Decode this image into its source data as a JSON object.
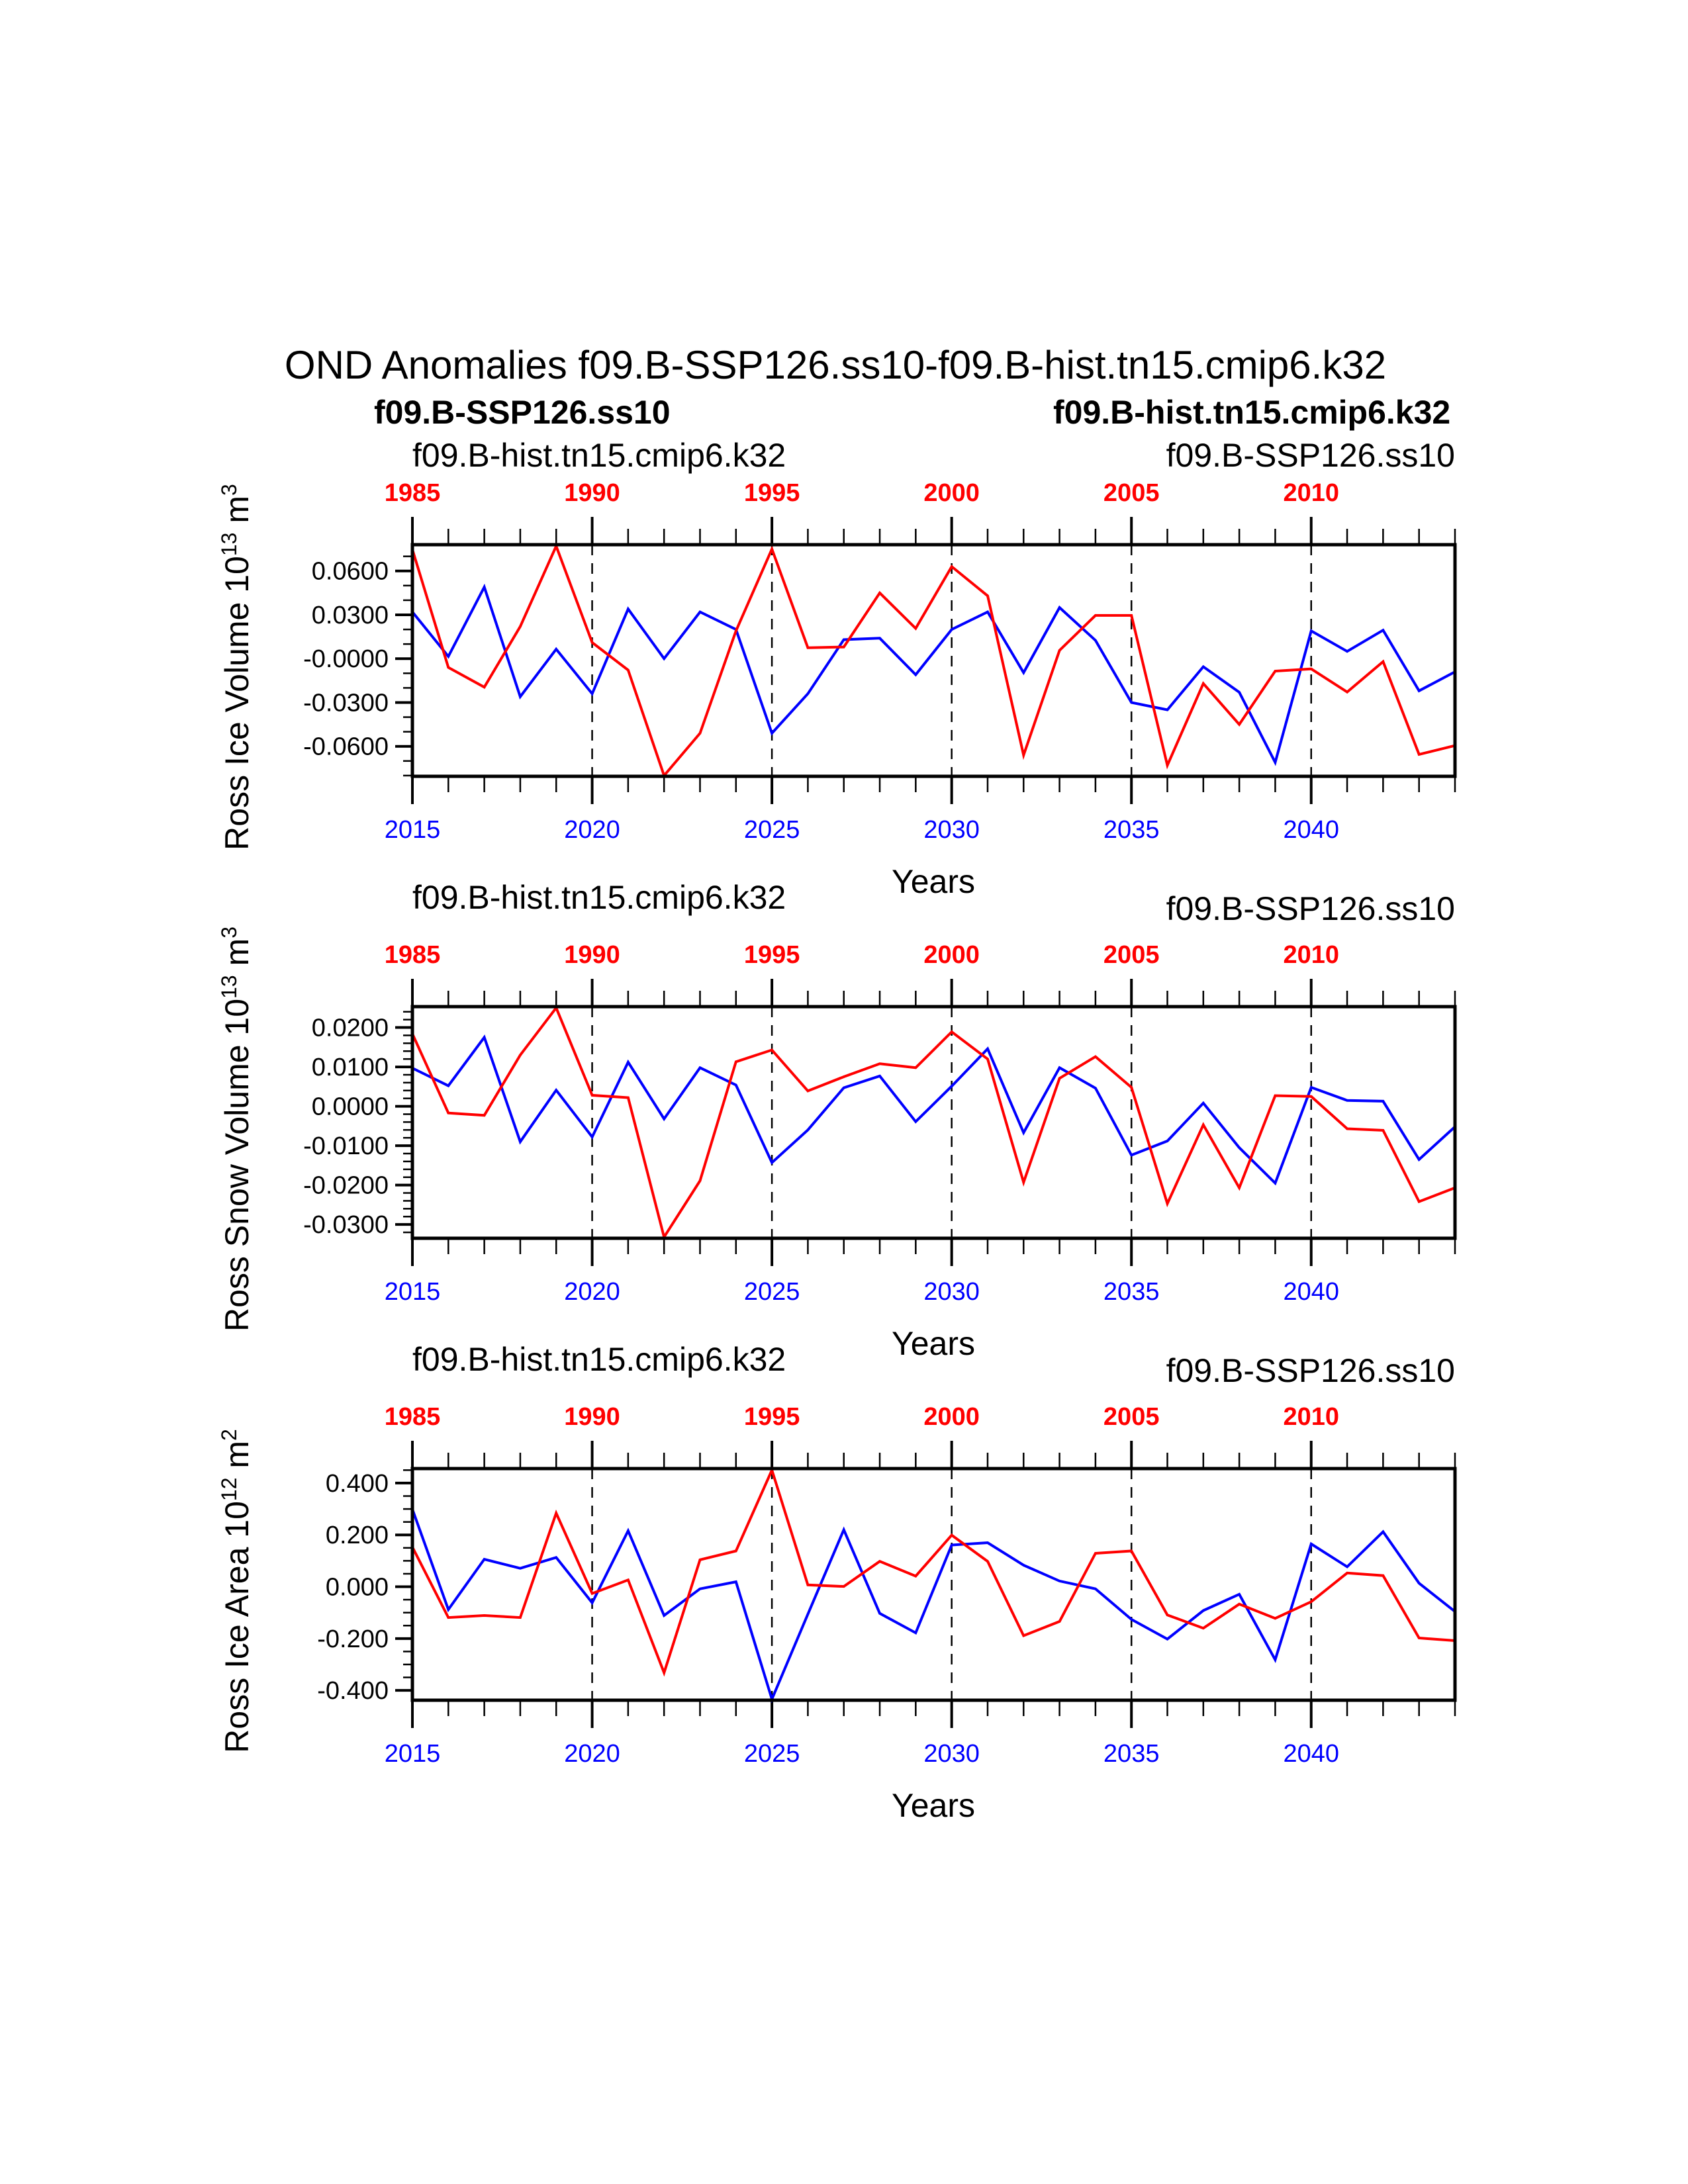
{
  "title": "OND Anomalies f09.B-SSP126.ss10-f09.B-hist.tn15.cmip6.k32",
  "colors": {
    "ssp": "#0000ff",
    "hist": "#ff0000",
    "axis": "#000000"
  },
  "extra_labels_panel1": {
    "ssp_bold": "f09.B-SSP126.ss10",
    "hist_bold": "f09.B-hist.tn15.cmip6.k32"
  },
  "chart_data": [
    {
      "type": "line",
      "ylabel": "Ross Ice Volume 10",
      "ylabel_exp": "13",
      "ylabel_unit": " m",
      "ylabel_unit_exp": "3",
      "xlabel": "Years",
      "hist_label": "f09.B-hist.tn15.cmip6.k32",
      "ssp_label": "f09.B-SSP126.ss10",
      "ylim": [
        -0.0805,
        0.078
      ],
      "yticks": [
        0.06,
        0.03,
        0.0,
        -0.03,
        -0.06
      ],
      "ytick_labels": [
        "0.0600",
        "0.0300",
        "-0.0000",
        "-0.0300",
        "-0.0600"
      ],
      "yminor_step": 0.01,
      "xlim": [
        2015,
        2044
      ],
      "bottom_ticks": [
        "2015",
        "2020",
        "2025",
        "2030",
        "2035",
        "2040"
      ],
      "top_ticks": [
        "1985",
        "1990",
        "1995",
        "2000",
        "2005",
        "2010"
      ],
      "grid": "dashed vertical lines at 2020, 2025, 2030, 2035, 2040",
      "x": [
        2015,
        2016,
        2017,
        2018,
        2019,
        2020,
        2021,
        2022,
        2023,
        2024,
        2025,
        2026,
        2027,
        2028,
        2029,
        2030,
        2031,
        2032,
        2033,
        2034,
        2035,
        2036,
        2037,
        2038,
        2039,
        2040,
        2041,
        2042,
        2043,
        2044
      ],
      "series": [
        {
          "name": "f09.B-SSP126.ss10",
          "color": "#0000ff",
          "values": [
            0.032,
            0.0015,
            0.049,
            -0.026,
            0.0065,
            -0.024,
            0.034,
            0.0,
            0.032,
            0.02,
            -0.051,
            -0.024,
            0.013,
            0.014,
            -0.011,
            0.02,
            0.032,
            -0.0096,
            0.035,
            0.0125,
            -0.03,
            -0.035,
            -0.0055,
            -0.023,
            -0.071,
            0.019,
            0.005,
            0.0195,
            -0.022,
            -0.009
          ]
        },
        {
          "name": "f09.B-hist.tn15.cmip6.k32",
          "color": "#ff0000",
          "values": [
            0.0747,
            -0.006,
            -0.0195,
            0.022,
            0.077,
            0.011,
            -0.0078,
            -0.08,
            -0.051,
            0.019,
            0.075,
            0.0075,
            0.008,
            0.045,
            0.0207,
            0.063,
            0.043,
            -0.066,
            0.0057,
            0.0296,
            0.0296,
            -0.073,
            -0.017,
            -0.045,
            -0.0085,
            -0.007,
            -0.0228,
            -0.002,
            -0.0655,
            -0.0595
          ]
        }
      ]
    },
    {
      "type": "line",
      "ylabel": "Ross Snow Volume 10",
      "ylabel_exp": "13",
      "ylabel_unit": " m",
      "ylabel_unit_exp": "3",
      "xlabel": "Years",
      "hist_label": "f09.B-hist.tn15.cmip6.k32",
      "ssp_label": "f09.B-SSP126.ss10",
      "ylim": [
        -0.0335,
        0.0253
      ],
      "yticks": [
        0.02,
        0.01,
        0.0,
        -0.01,
        -0.02,
        -0.03
      ],
      "ytick_labels": [
        "0.0200",
        "0.0100",
        "0.0000",
        "-0.0100",
        "-0.0200",
        "-0.0300"
      ],
      "yminor_step": 0.002,
      "xlim": [
        2015,
        2044
      ],
      "bottom_ticks": [
        "2015",
        "2020",
        "2025",
        "2030",
        "2035",
        "2040"
      ],
      "top_ticks": [
        "1985",
        "1990",
        "1995",
        "2000",
        "2005",
        "2010"
      ],
      "grid": "dashed vertical lines at 2020, 2025, 2030, 2035, 2040",
      "x": [
        2015,
        2016,
        2017,
        2018,
        2019,
        2020,
        2021,
        2022,
        2023,
        2024,
        2025,
        2026,
        2027,
        2028,
        2029,
        2030,
        2031,
        2032,
        2033,
        2034,
        2035,
        2036,
        2037,
        2038,
        2039,
        2040,
        2041,
        2042,
        2043,
        2044
      ],
      "series": [
        {
          "name": "f09.B-SSP126.ss10",
          "color": "#0000ff",
          "values": [
            0.0097,
            0.0052,
            0.0175,
            -0.009,
            0.0041,
            -0.0078,
            0.0112,
            -0.0032,
            0.0098,
            0.0054,
            -0.0143,
            -0.006,
            0.0047,
            0.0077,
            -0.0039,
            0.0051,
            0.0146,
            -0.0067,
            0.0098,
            0.0046,
            -0.0124,
            -0.0088,
            0.0008,
            -0.0105,
            -0.0195,
            0.0048,
            0.0015,
            0.0013,
            -0.0135,
            -0.0052
          ]
        },
        {
          "name": "f09.B-hist.tn15.cmip6.k32",
          "color": "#ff0000",
          "values": [
            0.0184,
            -0.0017,
            -0.0023,
            0.013,
            0.025,
            0.0028,
            0.0022,
            -0.0332,
            -0.0189,
            0.0113,
            0.0143,
            0.0039,
            0.0075,
            0.0108,
            0.0098,
            0.0189,
            0.012,
            -0.0193,
            0.0071,
            0.0126,
            0.0048,
            -0.0247,
            -0.0047,
            -0.0207,
            0.0027,
            0.0025,
            -0.0057,
            -0.0061,
            -0.0242,
            -0.0207
          ]
        }
      ]
    },
    {
      "type": "line",
      "ylabel": "Ross Ice Area 10",
      "ylabel_exp": "12",
      "ylabel_unit": " m",
      "ylabel_unit_exp": "2",
      "xlabel": "Years",
      "hist_label": "f09.B-hist.tn15.cmip6.k32",
      "ssp_label": "f09.B-SSP126.ss10",
      "ylim": [
        -0.438,
        0.456
      ],
      "yticks": [
        0.4,
        0.2,
        0.0,
        -0.2,
        -0.4
      ],
      "ytick_labels": [
        "0.400",
        "0.200",
        "0.000",
        "-0.200",
        "-0.400"
      ],
      "yminor_step": 0.05,
      "xlim": [
        2015,
        2044
      ],
      "bottom_ticks": [
        "2015",
        "2020",
        "2025",
        "2030",
        "2035",
        "2040"
      ],
      "top_ticks": [
        "1985",
        "1990",
        "1995",
        "2000",
        "2005",
        "2010"
      ],
      "grid": "dashed vertical lines at 2020, 2025, 2030, 2035, 2040",
      "x": [
        2015,
        2016,
        2017,
        2018,
        2019,
        2020,
        2021,
        2022,
        2023,
        2024,
        2025,
        2026,
        2027,
        2028,
        2029,
        2030,
        2031,
        2032,
        2033,
        2034,
        2035,
        2036,
        2037,
        2038,
        2039,
        2040,
        2041,
        2042,
        2043,
        2044
      ],
      "series": [
        {
          "name": "f09.B-SSP126.ss10",
          "color": "#0000ff",
          "values": [
            0.299,
            -0.088,
            0.106,
            0.071,
            0.113,
            -0.062,
            0.216,
            -0.111,
            -0.008,
            0.019,
            -0.434,
            -0.106,
            0.22,
            -0.103,
            -0.178,
            0.161,
            0.17,
            0.083,
            0.022,
            -0.008,
            -0.126,
            -0.202,
            -0.092,
            -0.029,
            -0.282,
            0.165,
            0.077,
            0.212,
            0.0135,
            -0.096
          ]
        },
        {
          "name": "f09.B-hist.tn15.cmip6.k32",
          "color": "#ff0000",
          "values": [
            0.153,
            -0.119,
            -0.111,
            -0.119,
            0.284,
            -0.026,
            0.026,
            -0.332,
            0.104,
            0.138,
            0.45,
            0.007,
            0.001,
            0.098,
            0.041,
            0.199,
            0.098,
            -0.189,
            -0.134,
            0.129,
            0.138,
            -0.109,
            -0.16,
            -0.067,
            -0.122,
            -0.058,
            0.053,
            0.043,
            -0.198,
            -0.208
          ]
        }
      ]
    }
  ]
}
